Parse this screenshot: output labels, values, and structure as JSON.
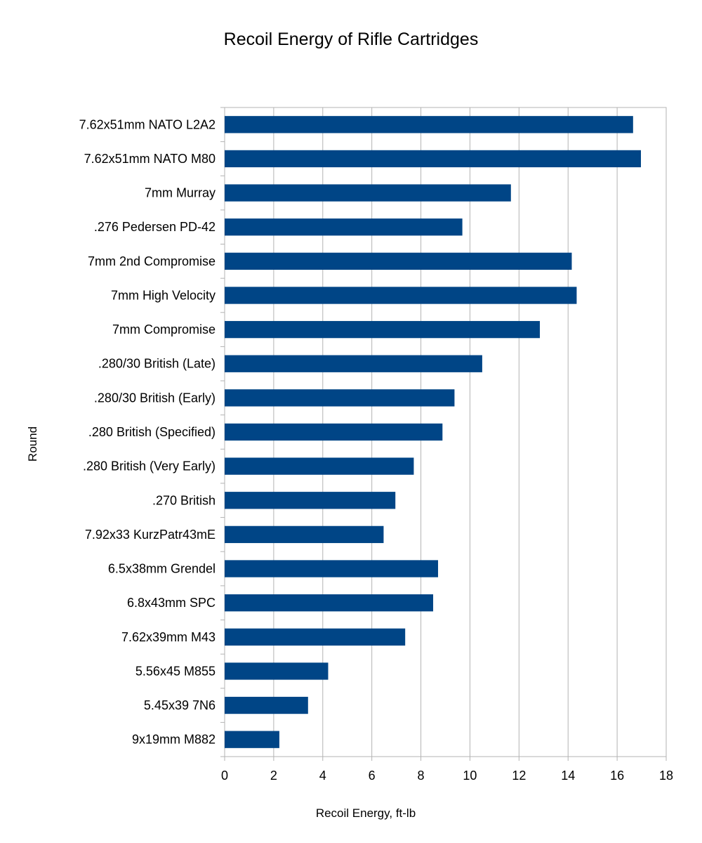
{
  "chart_data": {
    "type": "bar",
    "orientation": "horizontal",
    "title": "Recoil Energy of Rifle Cartridges",
    "xlabel": "Recoil Energy, ft-lb",
    "ylabel": "Round",
    "xlim": [
      0,
      18
    ],
    "xticks": [
      "0",
      "2",
      "4",
      "6",
      "8",
      "10",
      "12",
      "14",
      "16",
      "18"
    ],
    "grid": true,
    "categories": [
      "7.62x51mm NATO L2A2",
      "7.62x51mm NATO M80",
      "7mm Murray",
      ".276 Pedersen PD-42",
      "7mm 2nd Compromise",
      "7mm High Velocity",
      "7mm Compromise",
      ".280/30 British (Late)",
      ".280/30 British (Early)",
      ".280 British (Specified)",
      ".280 British (Very Early)",
      ".270 British",
      "7.92x33 KurzPatr43mE",
      "6.5x38mm Grendel",
      "6.8x43mm SPC",
      "7.62x39mm M43",
      "5.56x45 M855",
      "5.45x39 7N6",
      "9x19mm M882"
    ],
    "values": [
      16.65,
      16.97,
      11.67,
      9.69,
      14.15,
      14.35,
      12.85,
      10.5,
      9.37,
      8.88,
      7.71,
      6.96,
      6.48,
      8.7,
      8.5,
      7.36,
      4.22,
      3.4,
      2.23
    ],
    "bar_color": "#004586"
  }
}
